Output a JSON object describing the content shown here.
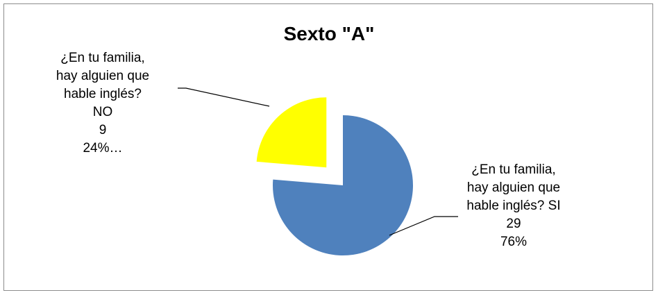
{
  "chart_data": {
    "type": "pie",
    "title": "Sexto \"A\"",
    "slices": [
      {
        "label_lines": [
          "¿En tu familia,",
          "hay alguien que",
          "hable inglés? SI",
          "29",
          "76%"
        ],
        "value": 29,
        "percent": 76,
        "color": "#4F81BD"
      },
      {
        "label_lines": [
          "¿En tu familia,",
          "hay alguien que",
          "hable inglés?",
          "NO",
          "9",
          "24%…"
        ],
        "value": 9,
        "percent": 24,
        "color": "#FFFF00",
        "exploded": true
      }
    ]
  }
}
